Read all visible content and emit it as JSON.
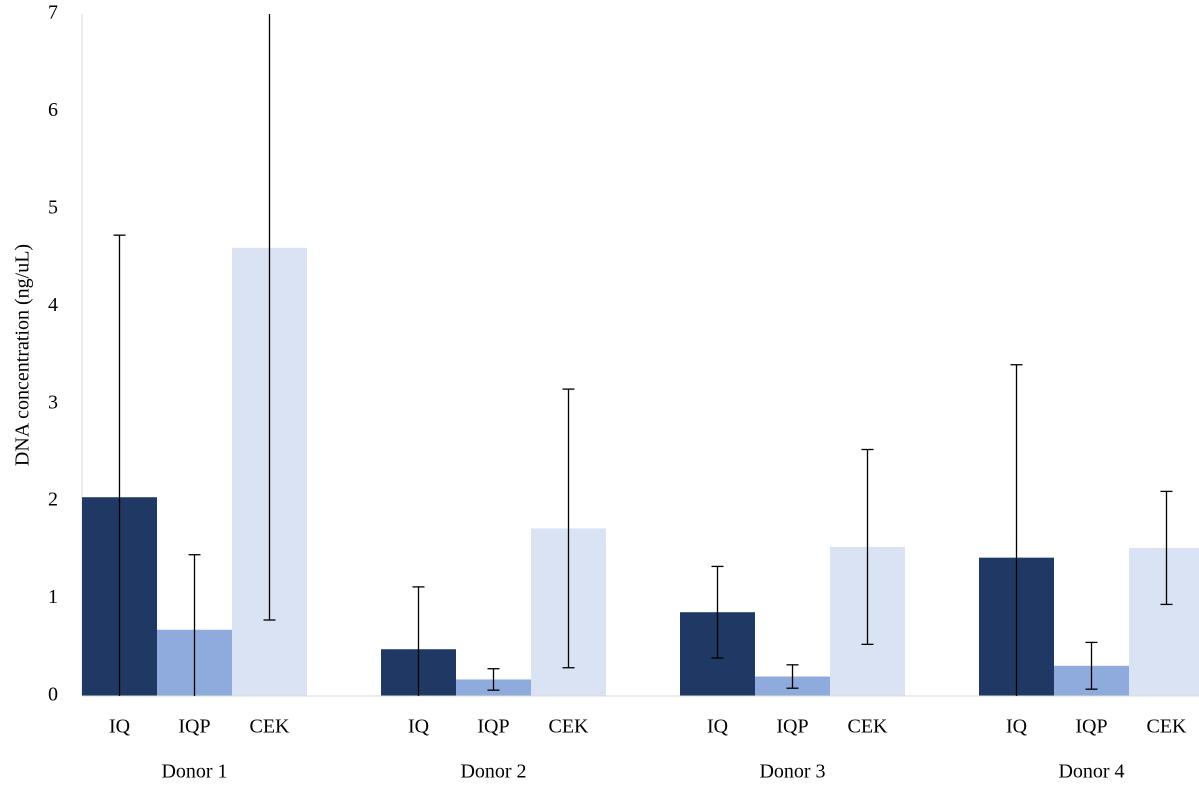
{
  "chart_data": {
    "type": "bar",
    "y_label": "DNA concentration (ng/uL)",
    "categories": [
      "Donor 1",
      "Donor 2",
      "Donor 3",
      "Donor 4"
    ],
    "series": [
      {
        "name": "IQ",
        "color": "#1f3864",
        "values": [
          2.04,
          0.48,
          0.86,
          1.42
        ],
        "errors": [
          2.69,
          0.64,
          0.47,
          1.98
        ]
      },
      {
        "name": "IQP",
        "color": "#8faadc",
        "values": [
          0.68,
          0.17,
          0.2,
          0.31
        ],
        "errors": [
          0.77,
          0.11,
          0.12,
          0.24
        ]
      },
      {
        "name": "CEK",
        "color": "#dae3f3",
        "values": [
          4.6,
          1.72,
          1.53,
          1.52
        ],
        "errors": [
          3.82,
          1.43,
          1.0,
          0.58
        ]
      }
    ],
    "ylim": [
      0,
      7
    ],
    "yticks": [
      0,
      1,
      2,
      3,
      4,
      5,
      6,
      7
    ],
    "grid": false
  }
}
